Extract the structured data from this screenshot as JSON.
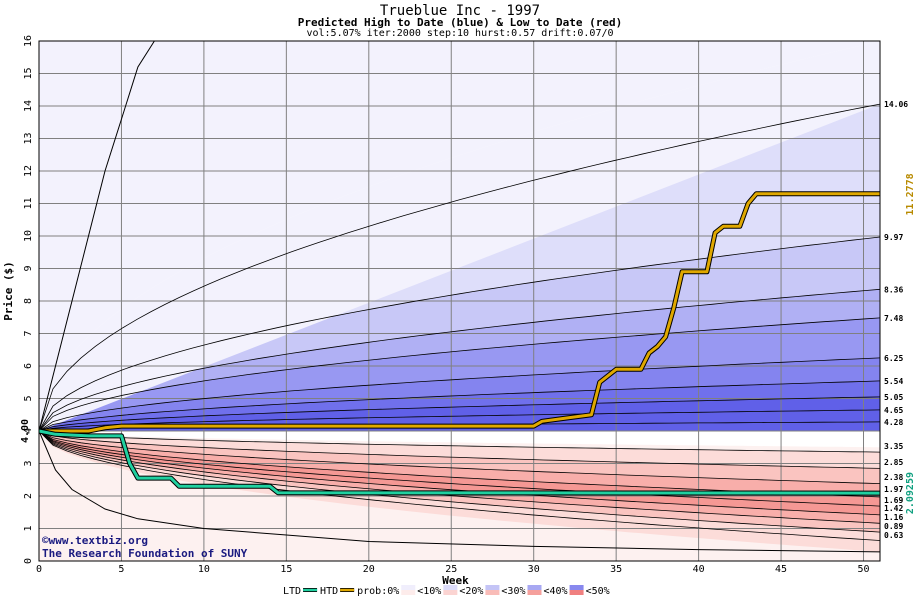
{
  "chart_data": {
    "type": "area",
    "title": "Trueblue Inc - 1997",
    "subtitle": "Predicted High to Date (blue) &  Low to Date (red)",
    "params": "vol:5.07% iter:2000 step:10 hurst:0.57 drift:0.07/0",
    "xlabel": "Week",
    "ylabel": "Price ($)",
    "xlim": [
      0,
      51
    ],
    "ylim": [
      0,
      16
    ],
    "xticks": [
      0,
      5,
      10,
      15,
      20,
      25,
      30,
      35,
      40,
      45,
      50
    ],
    "yticks": [
      0,
      1,
      2,
      3,
      4,
      5,
      6,
      7,
      8,
      9,
      10,
      11,
      12,
      13,
      14,
      15,
      16
    ],
    "grid": true,
    "start_price": 4.0,
    "start_label": "4.00",
    "high_band_end_values": [
      14.06,
      9.97,
      8.36,
      7.48,
      6.25,
      5.54,
      5.05,
      4.65,
      4.28
    ],
    "high_band_end_labels": [
      "14.06",
      "9.97",
      "8.36",
      "7.48",
      "6.25",
      "5.54",
      "5.05",
      "4.65",
      "4.28"
    ],
    "low_band_end_values": [
      3.35,
      2.85,
      2.38,
      1.97,
      1.69,
      1.42,
      1.16,
      0.89,
      0.63
    ],
    "low_band_end_labels": [
      "3.35",
      "2.85",
      "2.38",
      "1.97",
      "1.69",
      "1.42",
      "1.16",
      "0.89",
      "0.63"
    ],
    "extreme_high_curve": [
      [
        0,
        4.0
      ],
      [
        1,
        6.0
      ],
      [
        2,
        8.0
      ],
      [
        3,
        10.0
      ],
      [
        4,
        12.0
      ],
      [
        5,
        13.6
      ],
      [
        6,
        15.2
      ],
      [
        7,
        16.0
      ]
    ],
    "extreme_low_curve": [
      [
        0,
        4.0
      ],
      [
        1,
        2.8
      ],
      [
        2,
        2.2
      ],
      [
        4,
        1.6
      ],
      [
        6,
        1.3
      ],
      [
        10,
        1.0
      ],
      [
        15,
        0.8
      ],
      [
        20,
        0.6
      ],
      [
        30,
        0.45
      ],
      [
        40,
        0.35
      ],
      [
        51,
        0.28
      ]
    ],
    "series": [
      {
        "name": "HTD",
        "color": "#e0a800",
        "end_label": "11.2778",
        "points": [
          [
            0,
            4.0
          ],
          [
            3,
            4.0
          ],
          [
            4,
            4.1
          ],
          [
            5,
            4.15
          ],
          [
            30,
            4.15
          ],
          [
            30.5,
            4.3
          ],
          [
            32,
            4.4
          ],
          [
            33.5,
            4.5
          ],
          [
            34,
            5.5
          ],
          [
            35,
            5.9
          ],
          [
            36.5,
            5.9
          ],
          [
            37,
            6.4
          ],
          [
            37.5,
            6.6
          ],
          [
            38,
            6.9
          ],
          [
            38.5,
            7.8
          ],
          [
            39,
            8.9
          ],
          [
            40.5,
            8.9
          ],
          [
            41,
            10.1
          ],
          [
            41.5,
            10.3
          ],
          [
            42.5,
            10.3
          ],
          [
            43,
            11.0
          ],
          [
            43.5,
            11.3
          ],
          [
            51,
            11.3
          ]
        ]
      },
      {
        "name": "LTD",
        "color": "#20d0a0",
        "end_label": "2.09259",
        "points": [
          [
            0,
            4.0
          ],
          [
            1,
            3.9
          ],
          [
            3,
            3.85
          ],
          [
            5,
            3.85
          ],
          [
            5.5,
            3.0
          ],
          [
            6,
            2.55
          ],
          [
            8,
            2.55
          ],
          [
            8.5,
            2.3
          ],
          [
            14,
            2.3
          ],
          [
            14.5,
            2.1
          ],
          [
            51,
            2.09
          ]
        ]
      }
    ],
    "legend": {
      "items": [
        "LTD",
        "HTD",
        "prob:0%",
        "<10%",
        "<20%",
        "<30%",
        "<40%",
        "<50%"
      ],
      "swatch_colors": [
        "#20d0a0",
        "#e0a800",
        "#ffffff",
        "#f0eefc",
        "#dcdcfa",
        "#c4c4f6",
        "#a8a8f2",
        "#8888ee"
      ],
      "low_swatch_colors": [
        "#ffffff",
        "#fdeceb",
        "#fbd4d2",
        "#f9bcb8",
        "#f5a09c",
        "#f08080"
      ],
      "placement": "bottom"
    },
    "colors": {
      "high_fills": [
        "#f3f2fd",
        "#dedefa",
        "#c8c8f7",
        "#b0b0f4",
        "#9898f2",
        "#8484ef",
        "#7070ec",
        "#6060e8"
      ],
      "low_fills": [
        "#fdf1f0",
        "#fcdcd9",
        "#fac4c0",
        "#f8aeaa",
        "#f59894",
        "#f3847f",
        "#f07470"
      ],
      "grid": "#808080",
      "band_line": "#000000"
    }
  },
  "footer": {
    "credit_line1": "©www.textbiz.org",
    "credit_line2": "The Research Foundation of SUNY"
  }
}
